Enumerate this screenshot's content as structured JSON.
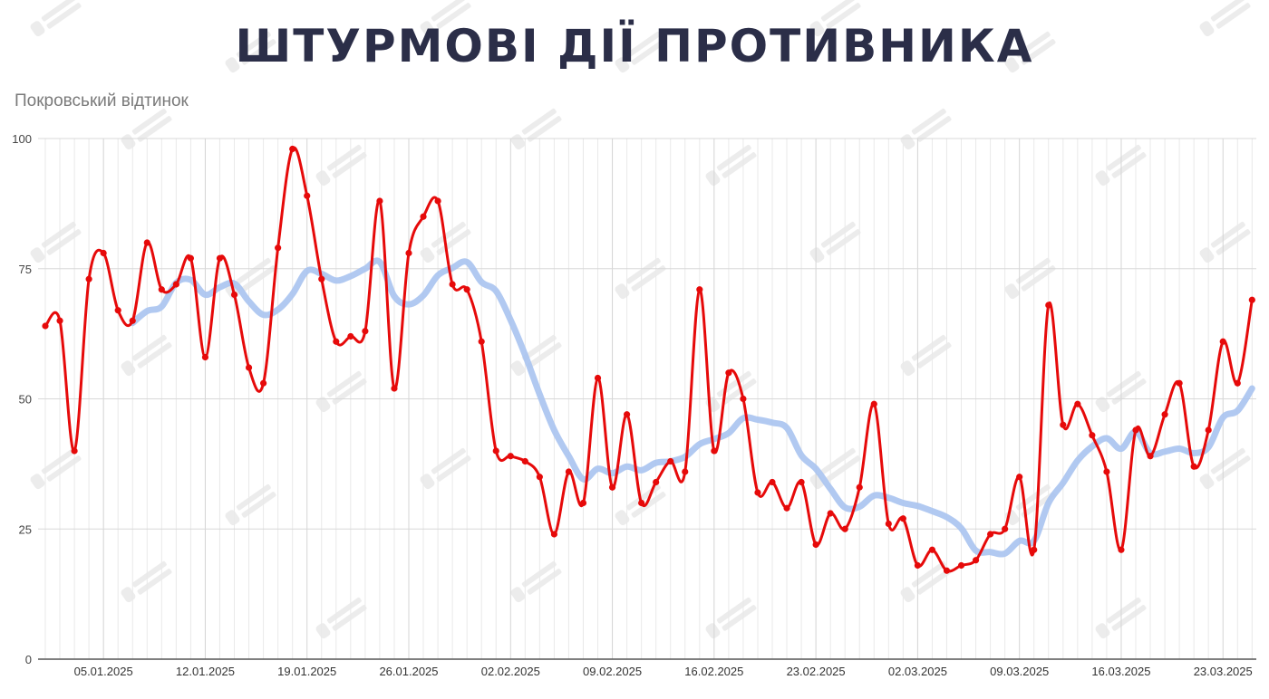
{
  "watermark": "DEEP STATE",
  "chart_data": {
    "type": "line",
    "title": "ШТУРМОВІ ДІЇ ПРОТИВНИКА",
    "subtitle": "Покровський відтинок",
    "xlabel": "",
    "ylabel": "",
    "start_date": "01.01.2025",
    "end_date": "25.03.2025",
    "x_tick_labels": [
      "05.01.2025",
      "12.01.2025",
      "19.01.2025",
      "26.01.2025",
      "02.02.2025",
      "09.02.2025",
      "16.02.2025",
      "23.02.2025",
      "02.03.2025",
      "09.03.2025",
      "16.03.2025",
      "23.03.2025"
    ],
    "y_ticks": [
      0,
      25,
      50,
      75,
      100
    ],
    "ylim": [
      0,
      100
    ],
    "grid": true,
    "legend": "none",
    "series": [
      {
        "style": "daily",
        "color": "#e60a0a",
        "values": [
          64,
          65,
          40,
          73,
          78,
          67,
          65,
          80,
          71,
          72,
          77,
          58,
          77,
          70,
          56,
          53,
          79,
          98,
          89,
          73,
          61,
          62,
          63,
          88,
          52,
          78,
          85,
          88,
          72,
          71,
          61,
          40,
          39,
          38,
          35,
          24,
          36,
          30,
          54,
          33,
          47,
          30,
          34,
          38,
          36,
          71,
          40,
          55,
          50,
          32,
          34,
          29,
          34,
          22,
          28,
          25,
          33,
          49,
          26,
          27,
          18,
          21,
          17,
          18,
          19,
          24,
          25,
          35,
          21,
          68,
          45,
          49,
          43,
          36,
          21,
          44,
          39,
          47,
          53,
          37,
          44,
          61,
          53,
          69
        ]
      },
      {
        "style": "trend",
        "color": "#a9c3ef",
        "trend": {
          "type": "moving_average",
          "window": 7
        }
      }
    ]
  }
}
